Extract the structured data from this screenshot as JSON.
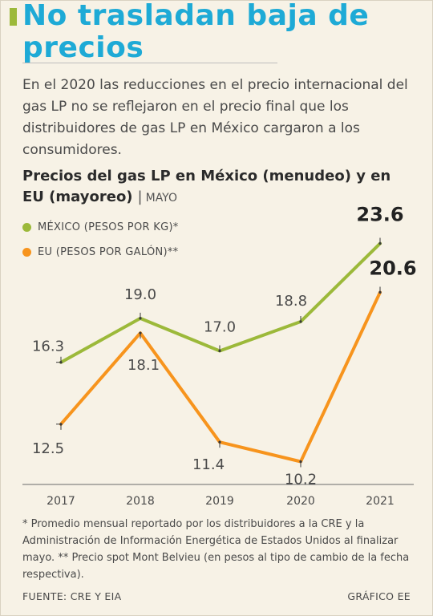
{
  "title": "No trasladan baja de precios",
  "intro": "En el 2020 las reducciones en el precio internacional del gas LP no se reflejaron en el precio final que los distribuidores de gas LP en México cargaron a los consumidores.",
  "chart_title_main": "Precios del gas LP en México (menudeo) y en EU (mayoreo)",
  "chart_title_separator": "|",
  "chart_title_sub": "MAYO",
  "notes": "* Promedio mensual reportado por los distribuidores a la CRE y la Administración de Información Energética de Estados Unidos al finalizar mayo. ** Precio spot Mont Belvieu (en pesos al tipo de cambio de la fecha respectiva).",
  "source": "FUENTE: CRE Y EIA",
  "credit": "GRÁFICO EE",
  "colors": {
    "mexico": "#9cb93a",
    "eu": "#f7941d",
    "title": "#1eaad6"
  },
  "chart_data": {
    "type": "line",
    "x": [
      "2017",
      "2018",
      "2019",
      "2020",
      "2021"
    ],
    "series": [
      {
        "name": "MÉXICO (PESOS POR KG)*",
        "values": [
          16.3,
          19.0,
          17.0,
          18.8,
          23.6
        ],
        "labels": [
          "16.3",
          "19.0",
          "17.0",
          "18.8",
          "23.6"
        ]
      },
      {
        "name": "EU (PESOS POR GALÓN)**",
        "values": [
          12.5,
          18.1,
          11.4,
          10.2,
          20.6
        ],
        "labels": [
          "12.5",
          "18.1",
          "11.4",
          "10.2",
          "20.6"
        ]
      }
    ],
    "ylim": [
      8.5,
      25.5
    ],
    "grid": false,
    "legend": "top-left"
  }
}
